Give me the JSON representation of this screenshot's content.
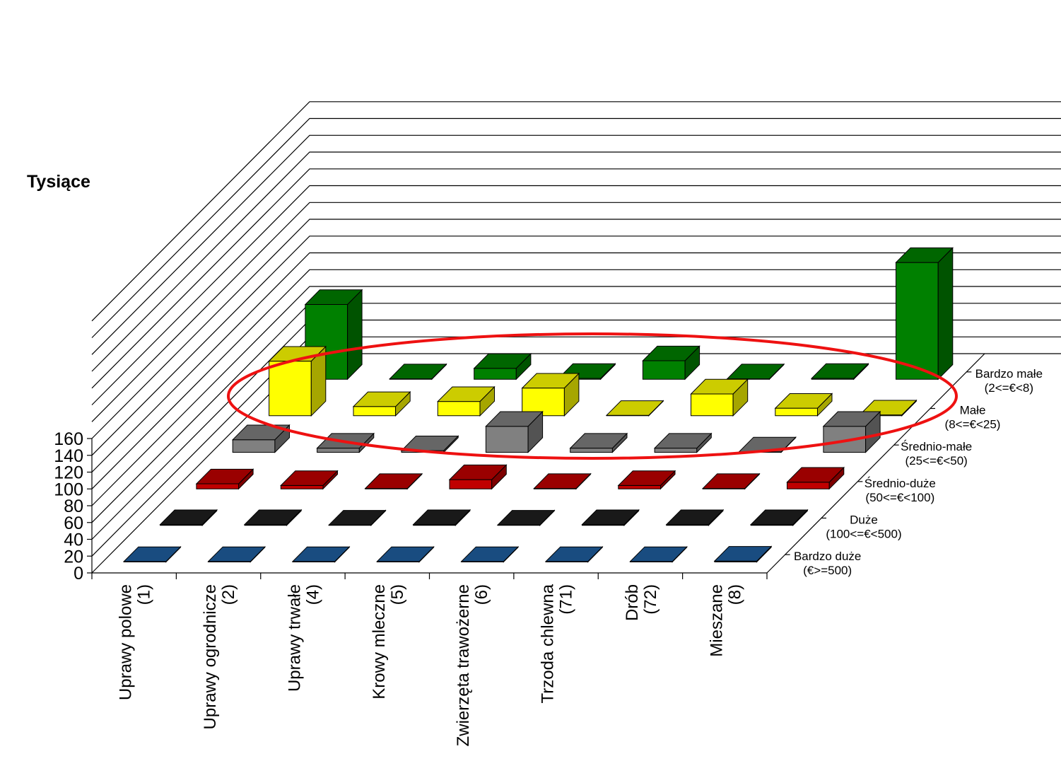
{
  "chart_data": {
    "type": "bar",
    "subtype": "3d-grouped-bar",
    "ylabel": "Tysiące",
    "ylim": [
      0,
      160
    ],
    "yticks": [
      "0",
      "20",
      "40",
      "60",
      "80",
      "100",
      "120",
      "140",
      "160"
    ],
    "grid": true,
    "categories": [
      [
        "Uprawy polowe",
        "(1)"
      ],
      [
        "Uprawy ogrodnicze",
        "(2)"
      ],
      [
        "Uprawy trwałe",
        "(4)"
      ],
      [
        "Krowy mleczne",
        "(5)"
      ],
      [
        "Zwierzęta trawożerne",
        "(6)"
      ],
      [
        "Trzoda chlewna",
        "(71)"
      ],
      [
        "Drób",
        "(72)"
      ],
      [
        "Mieszane",
        "(8)"
      ]
    ],
    "series": [
      {
        "name": [
          "Bardzo duże",
          "(€>=500)"
        ],
        "color": "#1f5fa0",
        "values": [
          0.5,
          0.5,
          0.5,
          0.5,
          0.5,
          0.5,
          0.5,
          1
        ]
      },
      {
        "name": [
          "Duże",
          "(100<=€<500)"
        ],
        "color": "#000000",
        "values": [
          1,
          1,
          0.5,
          1,
          0.5,
          1,
          1,
          1
        ]
      },
      {
        "name": [
          "Średnio-duże",
          "(50<=€<100)"
        ],
        "color": "#c00000",
        "values": [
          6,
          4,
          0.5,
          11,
          0.5,
          4,
          0.5,
          8
        ]
      },
      {
        "name": [
          "Średnio-małe",
          "(25<=€<50)"
        ],
        "color": "#808080",
        "values": [
          15,
          5,
          2,
          31,
          5,
          5,
          0.5,
          31
        ]
      },
      {
        "name": [
          "Małe",
          "(8<=€<25)"
        ],
        "color": "#ffff00",
        "values": [
          65,
          11,
          17,
          33,
          0.5,
          26,
          9,
          1
        ]
      },
      {
        "name": [
          "Bardzo małe",
          "(2<=€<8)"
        ],
        "color": "#008000",
        "values": [
          89,
          0.5,
          13,
          1,
          22,
          0.5,
          1,
          139
        ]
      }
    ],
    "annotation": "red ellipse highlighting the middle categories"
  }
}
